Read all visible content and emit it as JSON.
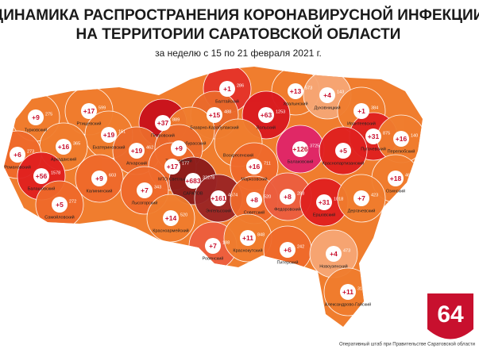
{
  "header": {
    "title_line1": "ДИНАМИКА РАСПРОСТРАНЕНИЯ КОРОНАВИРУСНОЙ ИНФЕКЦИИ",
    "title_line2": "НА ТЕРРИТОРИИ САРАТОВСКОЙ ОБЛАСТИ",
    "subtitle": "за неделю с 15 по 21 февраля 2021 г."
  },
  "regions": [
    {
      "name": "Балтайский",
      "new": "+1",
      "total": "286",
      "color": "#e4332a"
    },
    {
      "name": "Базарно-Карабулакский",
      "new": "+15",
      "total": "488",
      "color": "#ea6a2b"
    },
    {
      "name": "Хвалынский",
      "new": "+13",
      "total": "573",
      "color": "#f07d2e"
    },
    {
      "name": "Духовницкий",
      "new": "+4",
      "total": "143",
      "color": "#f6a775"
    },
    {
      "name": "Вольский",
      "new": "+63",
      "total": "1253",
      "color": "#d9181f"
    },
    {
      "name": "Ивантеевский",
      "new": "+1",
      "total": "384",
      "color": "#f07d2e"
    },
    {
      "name": "Петровский",
      "new": "+37",
      "total": "889",
      "color": "#c8101c"
    },
    {
      "name": "Новобурасский",
      "color": "#f07d2e"
    },
    {
      "name": "Ртищевский",
      "new": "+17",
      "total": "599",
      "color": "#f07d2e"
    },
    {
      "name": "Турковский",
      "new": "+9",
      "total": "275",
      "color": "#f07d2e"
    },
    {
      "name": "Екатериновский",
      "new": "+19",
      "total": "161",
      "color": "#f07d2e"
    },
    {
      "name": "Аркадакский",
      "new": "+16",
      "total": "365",
      "color": "#f07d2e"
    },
    {
      "name": "Аткарский",
      "new": "+19",
      "total": "462",
      "color": "#ec6b2b"
    },
    {
      "name": "Татищевский",
      "new": "+9",
      "color": "#ec6b2b"
    },
    {
      "name": "МТО Светлый",
      "new": "+17",
      "total": "177",
      "color": "#ef6a2b"
    },
    {
      "name": "Воскресенский",
      "color": "#f07d2e"
    },
    {
      "name": "Марксовский",
      "new": "+16",
      "total": "711",
      "color": "#ef6a2b"
    },
    {
      "name": "Балаковский",
      "new": "+126",
      "total": "3725",
      "color": "#e0246a"
    },
    {
      "name": "Пугачевский",
      "new": "+31",
      "total": "875",
      "color": "#e0201f"
    },
    {
      "name": "Перелюбский",
      "new": "+16",
      "total": "140",
      "color": "#f07d2e"
    },
    {
      "name": "Краснопартизанский",
      "new": "+5",
      "color": "#e0201f"
    },
    {
      "name": "Романовский",
      "new": "+6",
      "total": "273",
      "color": "#ef6a2b"
    },
    {
      "name": "Балашовский",
      "new": "+56",
      "total": "1578",
      "color": "#e0201f"
    },
    {
      "name": "Калининский",
      "new": "+9",
      "total": "603",
      "color": "#ef6a2b"
    },
    {
      "name": "Лысогорский",
      "new": "+7",
      "total": "343",
      "color": "#ef6a2b"
    },
    {
      "name": "САРАТОВ",
      "new": "+683",
      "total": "32278",
      "color": "#8a1a1a"
    },
    {
      "name": "Энгельсский",
      "new": "+161",
      "total": "4674",
      "color": "#9a2424"
    },
    {
      "name": "Самойловский",
      "new": "+5",
      "total": "272",
      "color": "#ef6a2b"
    },
    {
      "name": "Советский",
      "new": "+8",
      "total": "520",
      "color": "#ef6a2b"
    },
    {
      "name": "Федоровский",
      "new": "+8",
      "total": "283",
      "color": "#ec5e3f"
    },
    {
      "name": "Ершовский",
      "new": "+31",
      "total": "1018",
      "color": "#e0201f"
    },
    {
      "name": "Озинский",
      "new": "+18",
      "total": "461",
      "color": "#f07d2e"
    },
    {
      "name": "Дергачевский",
      "new": "+7",
      "total": "423",
      "color": "#f07d2e"
    },
    {
      "name": "Красноармейский",
      "new": "+14",
      "total": "520",
      "color": "#f07d2e"
    },
    {
      "name": "Ровенский",
      "new": "+7",
      "total": "188",
      "color": "#ec5e3f"
    },
    {
      "name": "Краснокутский",
      "new": "+11",
      "total": "848",
      "color": "#f07d2e"
    },
    {
      "name": "Питерский",
      "new": "+6",
      "total": "242",
      "color": "#ef6a2b"
    },
    {
      "name": "Новоузенский",
      "new": "+4",
      "total": "473",
      "color": "#f6a775"
    },
    {
      "name": "Александрово-Гайский",
      "new": "+11",
      "total": "318",
      "color": "#f07d2e"
    }
  ],
  "logo": "64",
  "footer": "Оперативный штаб при Правительстве Саратовской области"
}
